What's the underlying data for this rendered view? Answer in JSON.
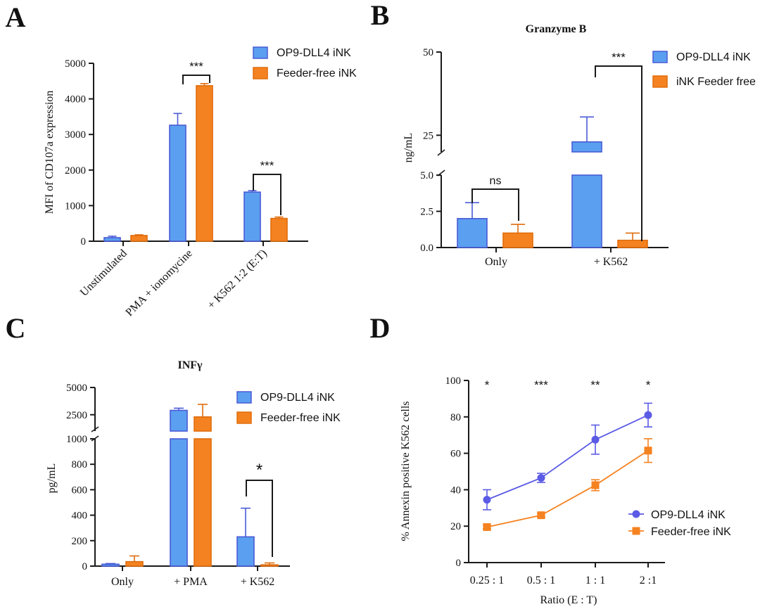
{
  "colors": {
    "blue": "#5b9ff0",
    "blue_edge": "#4a5bd6",
    "orange": "#f58220",
    "orange_edge": "#e06d0d",
    "purple": "#5b5be6",
    "axis": "#1a1a1a"
  },
  "chart_data": [
    {
      "panel": "A",
      "type": "bar",
      "title": "",
      "ylabel": "MFI of CD107a expression",
      "xlabel": "",
      "ylim": [
        0,
        5000
      ],
      "yticks": [
        0,
        1000,
        2000,
        3000,
        4000,
        5000
      ],
      "categories": [
        "Unstimulated",
        "PMA + ionomycine",
        "+ K562 1:2 (E:T)"
      ],
      "series": [
        {
          "name": "OP9-DLL4 iNK",
          "values": [
            100,
            3260,
            1380
          ],
          "errors": [
            40,
            330,
            40
          ]
        },
        {
          "name": "Feeder-free iNK",
          "values": [
            160,
            4370,
            640
          ],
          "errors": [
            20,
            60,
            40
          ]
        }
      ],
      "significance": [
        {
          "category": 1,
          "label": "***"
        },
        {
          "category": 2,
          "label": "***"
        }
      ]
    },
    {
      "panel": "B",
      "type": "bar",
      "title": "Granzyme B",
      "ylabel": "ng/mL",
      "xlabel": "",
      "ylim": [
        0,
        50
      ],
      "axis_break": {
        "lower": [
          0,
          5
        ],
        "upper": [
          20,
          50
        ]
      },
      "yticks_lower": [
        "0.0",
        "2.5",
        "5.0"
      ],
      "yticks_upper": [
        "25",
        "50"
      ],
      "categories": [
        "Only",
        "+ K562"
      ],
      "series": [
        {
          "name": "OP9-DLL4 iNK",
          "values": [
            2.0,
            23.0
          ],
          "errors": [
            1.1,
            7.5
          ]
        },
        {
          "name": "iNK Feeder free",
          "values": [
            1.0,
            0.5
          ],
          "errors": [
            0.6,
            0.5
          ]
        }
      ],
      "significance": [
        {
          "category": 0,
          "label": "ns"
        },
        {
          "category": 1,
          "label": "***"
        }
      ]
    },
    {
      "panel": "C",
      "type": "bar",
      "title": "INFγ",
      "ylabel": "pg/mL",
      "xlabel": "",
      "ylim": [
        0,
        5000
      ],
      "axis_break": {
        "lower": [
          0,
          1000
        ],
        "upper": [
          1000,
          5000
        ]
      },
      "yticks_lower": [
        "0",
        "200",
        "400",
        "600",
        "800",
        "1000"
      ],
      "yticks_upper": [
        "2500",
        "5000"
      ],
      "categories": [
        "Only",
        "+ PMA",
        "+ K562"
      ],
      "series": [
        {
          "name": "OP9-DLL4 iNK",
          "values": [
            15,
            2900,
            230
          ],
          "errors": [
            5,
            200,
            225
          ]
        },
        {
          "name": "Feeder-free iNK",
          "values": [
            35,
            2300,
            10
          ],
          "errors": [
            45,
            1150,
            15
          ]
        }
      ],
      "significance": [
        {
          "category": 2,
          "label": "*"
        }
      ]
    },
    {
      "panel": "D",
      "type": "line",
      "title": "",
      "ylabel": "% Annexin positive K562 cells",
      "xlabel": "Ratio (E : T)",
      "ylim": [
        0,
        100
      ],
      "yticks": [
        0,
        20,
        40,
        60,
        80,
        100
      ],
      "categories": [
        "0.25 : 1",
        "0.5 : 1",
        "1 : 1",
        "2 :1"
      ],
      "series": [
        {
          "name": "OP9-DLL4 iNK",
          "marker": "circle",
          "values": [
            34.5,
            46.5,
            67.5,
            81
          ],
          "errors": [
            5.5,
            2.5,
            8,
            6.5
          ]
        },
        {
          "name": "Feeder-free iNK",
          "marker": "square",
          "values": [
            19.5,
            26,
            42.5,
            61.5
          ],
          "errors": [
            1,
            1,
            3,
            6.5
          ]
        }
      ],
      "significance_labels": [
        "*",
        "***",
        "**",
        "*"
      ]
    }
  ],
  "panel_labels": [
    "A",
    "B",
    "C",
    "D"
  ]
}
